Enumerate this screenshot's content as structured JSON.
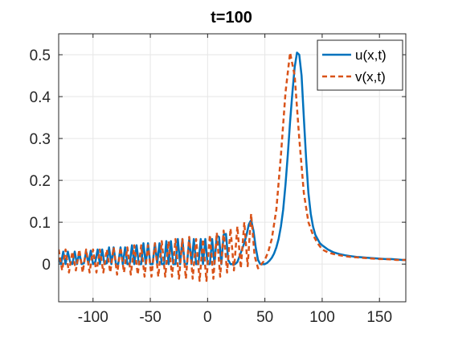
{
  "chart_data": {
    "type": "line",
    "title": "t=100",
    "xlabel": "",
    "ylabel": "",
    "xlim": [
      -130,
      173
    ],
    "ylim": [
      -0.09,
      0.55
    ],
    "xticks": [
      -100,
      -50,
      0,
      50,
      100,
      150
    ],
    "yticks": [
      0,
      0.1,
      0.2,
      0.3,
      0.4,
      0.5
    ],
    "xtick_labels": [
      "-100",
      "-50",
      "0",
      "50",
      "100",
      "150"
    ],
    "ytick_labels": [
      "0",
      "0.1",
      "0.2",
      "0.3",
      "0.4",
      "0.5"
    ],
    "grid": true,
    "legend_position": "top-right",
    "series": [
      {
        "name": "u(x,t)",
        "color": "#0072BD",
        "style": "solid",
        "x": [
          -130,
          -128,
          -126,
          -124,
          -122,
          -120,
          -118,
          -116,
          -114,
          -112,
          -110,
          -108,
          -106,
          -104,
          -102,
          -100,
          -98,
          -96,
          -94,
          -92,
          -90,
          -88,
          -86,
          -84,
          -82,
          -80,
          -78,
          -76,
          -74,
          -72,
          -70,
          -68,
          -66,
          -64,
          -62,
          -60,
          -58,
          -56,
          -54,
          -52,
          -50,
          -48,
          -46,
          -44,
          -42,
          -40,
          -38,
          -36,
          -34,
          -32,
          -30,
          -28,
          -26,
          -24,
          -22,
          -20,
          -18,
          -16,
          -14,
          -12,
          -10,
          -8,
          -6,
          -4,
          -2,
          0,
          2,
          4,
          6,
          8,
          10,
          12,
          14,
          16,
          18,
          20,
          22,
          24,
          26,
          28,
          30,
          32,
          34,
          36,
          38,
          40,
          42,
          44,
          46,
          48,
          50,
          52,
          54,
          56,
          58,
          60,
          62,
          64,
          66,
          68,
          70,
          72,
          74,
          76,
          78,
          80,
          82,
          84,
          86,
          88,
          90,
          92,
          94,
          96,
          98,
          100,
          105,
          110,
          115,
          120,
          125,
          130,
          135,
          140,
          145,
          150,
          155,
          160,
          165,
          170,
          173
        ],
        "y": [
          0.015,
          0.0,
          0.03,
          0.0,
          0.03,
          0.005,
          0.0,
          0.03,
          0.0,
          0.028,
          0.0,
          0.002,
          0.03,
          0.0,
          0.032,
          0.0,
          0.005,
          0.035,
          0.0,
          0.035,
          0.0,
          0.002,
          0.04,
          0.0,
          0.04,
          0.0,
          0.0,
          0.04,
          0.0,
          0.04,
          0.0,
          0.0,
          0.045,
          0.0,
          0.045,
          0.0,
          0.0,
          0.05,
          0.0,
          0.05,
          0.0,
          0.0,
          0.05,
          0.002,
          0.05,
          0.0,
          0.0,
          0.055,
          0.0,
          0.055,
          0.0,
          0.0,
          0.06,
          0.0,
          0.06,
          0.0,
          0.0,
          0.06,
          0.0,
          0.06,
          0.0,
          0.0,
          0.06,
          0.0,
          0.06,
          0.0,
          0.0,
          0.06,
          0.0,
          0.068,
          0.065,
          0.0,
          0.07,
          0.072,
          0.01,
          0.0,
          0.0,
          0.0,
          0.005,
          0.02,
          0.035,
          0.05,
          0.07,
          0.095,
          0.105,
          0.08,
          0.04,
          0.01,
          0.0,
          0.0,
          0.0,
          0.003,
          0.008,
          0.015,
          0.025,
          0.04,
          0.06,
          0.09,
          0.13,
          0.19,
          0.26,
          0.34,
          0.41,
          0.47,
          0.505,
          0.5,
          0.45,
          0.35,
          0.25,
          0.17,
          0.12,
          0.09,
          0.07,
          0.06,
          0.05,
          0.045,
          0.035,
          0.028,
          0.024,
          0.021,
          0.019,
          0.017,
          0.016,
          0.015,
          0.014,
          0.013,
          0.012,
          0.012,
          0.011,
          0.01,
          0.01
        ]
      },
      {
        "name": "v(x,t)",
        "color": "#D95319",
        "style": "dashed",
        "x": [
          -130,
          -127,
          -124,
          -121,
          -118,
          -115,
          -112,
          -109,
          -106,
          -103,
          -100,
          -97,
          -94,
          -91,
          -88,
          -85,
          -82,
          -79,
          -76,
          -73,
          -70,
          -67,
          -64,
          -61,
          -58,
          -55,
          -52,
          -49,
          -46,
          -43,
          -40,
          -37,
          -34,
          -31,
          -28,
          -25,
          -22,
          -19,
          -16,
          -13,
          -10,
          -7,
          -4,
          -1,
          2,
          5,
          8,
          11,
          14,
          17,
          20,
          23,
          26,
          29,
          32,
          35,
          38,
          41,
          44,
          47,
          50,
          53,
          56,
          60,
          64,
          68,
          72,
          76,
          80,
          84,
          88,
          92,
          96,
          100,
          105,
          110,
          115,
          120,
          125,
          130,
          135,
          140,
          145,
          150,
          155,
          160,
          165,
          170,
          173
        ],
        "y": [
          0.035,
          -0.015,
          0.035,
          -0.02,
          0.03,
          -0.015,
          0.035,
          -0.02,
          0.035,
          -0.02,
          0.035,
          -0.02,
          0.035,
          -0.02,
          0.035,
          -0.02,
          0.04,
          -0.025,
          0.04,
          -0.02,
          0.04,
          -0.025,
          0.045,
          -0.025,
          0.045,
          -0.03,
          0.045,
          -0.03,
          0.05,
          -0.03,
          0.055,
          -0.03,
          0.055,
          -0.03,
          0.06,
          -0.035,
          0.06,
          -0.035,
          0.065,
          -0.035,
          0.06,
          -0.04,
          0.06,
          -0.04,
          0.07,
          -0.035,
          0.075,
          -0.03,
          0.08,
          -0.02,
          0.085,
          -0.015,
          0.09,
          -0.01,
          0.1,
          -0.005,
          0.12,
          0.02,
          -0.01,
          0.0,
          0.01,
          0.03,
          0.06,
          0.13,
          0.26,
          0.41,
          0.505,
          0.45,
          0.3,
          0.17,
          0.1,
          0.07,
          0.05,
          0.035,
          0.028,
          0.024,
          0.021,
          0.019,
          0.017,
          0.016,
          0.015,
          0.014,
          0.013,
          0.012,
          0.012,
          0.011,
          0.01,
          0.01,
          0.01
        ]
      }
    ]
  }
}
